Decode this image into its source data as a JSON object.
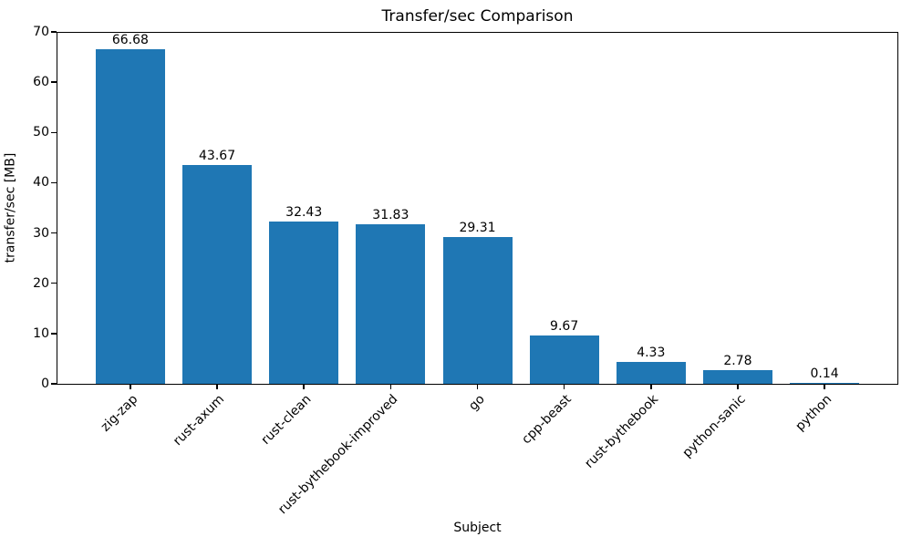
{
  "chart_data": {
    "type": "bar",
    "title": "Transfer/sec Comparison",
    "xlabel": "Subject",
    "ylabel": "transfer/sec [MB]",
    "categories": [
      "zig-zap",
      "rust-axum",
      "rust-clean",
      "rust-bythebook-improved",
      "go",
      "cpp-beast",
      "rust-bythebook",
      "python-sanic",
      "python"
    ],
    "values": [
      66.68,
      43.67,
      32.43,
      31.83,
      29.31,
      9.67,
      4.33,
      2.78,
      0.14
    ],
    "bar_labels": [
      "66.68",
      "43.67",
      "32.43",
      "31.83",
      "29.31",
      "9.67",
      "4.33",
      "2.78",
      "0.14"
    ],
    "ylim": [
      0,
      70
    ],
    "yticks": [
      0,
      10,
      20,
      30,
      40,
      50,
      60,
      70
    ],
    "bar_color": "#1f77b4",
    "text_color": "#000000",
    "background_color": "#ffffff",
    "grid": false,
    "legend": null,
    "xtick_rotation_deg": 45
  }
}
